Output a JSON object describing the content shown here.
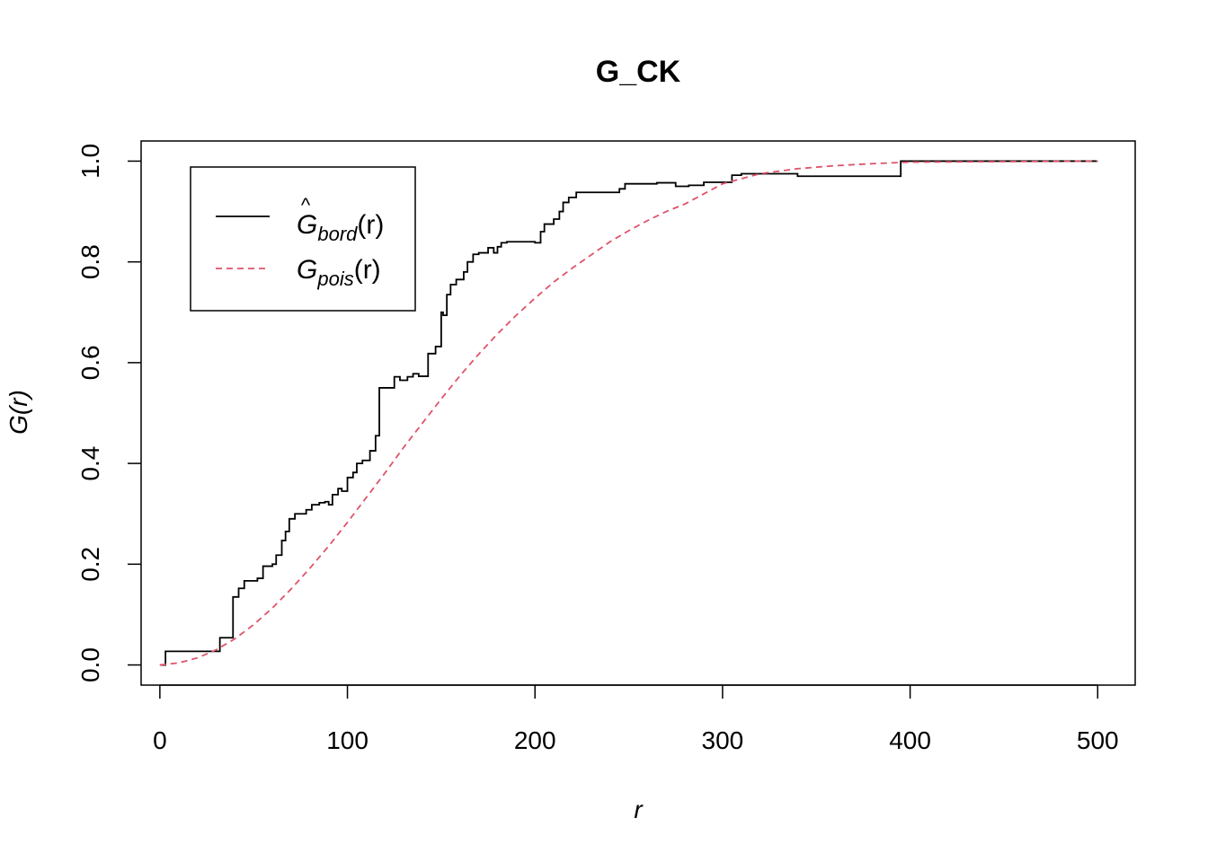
{
  "chart_data": {
    "type": "line",
    "title": "G_CK",
    "xlabel": "r",
    "ylabel": "G(r)",
    "xlim": [
      -10,
      520
    ],
    "ylim": [
      -0.04,
      1.04
    ],
    "x_ticks": [
      0,
      100,
      200,
      300,
      400,
      500
    ],
    "x_tick_labels": [
      "0",
      "100",
      "200",
      "300",
      "400",
      "500"
    ],
    "y_ticks": [
      0.0,
      0.2,
      0.4,
      0.6,
      0.8,
      1.0
    ],
    "y_tick_labels": [
      "0.0",
      "0.2",
      "0.4",
      "0.6",
      "0.8",
      "1.0"
    ],
    "grid": false,
    "legend_position": "top-left",
    "series": [
      {
        "name": "Ĝbord(r)",
        "legend_main": "G",
        "legend_sub": "bord",
        "legend_arg": "(r)",
        "color": "#000000",
        "style": "solid",
        "step": true,
        "x": [
          0,
          3,
          32,
          37,
          39,
          42,
          45,
          52,
          55,
          60,
          62,
          65,
          67,
          69,
          72,
          78,
          81,
          85,
          88,
          90,
          92,
          95,
          97,
          100,
          103,
          105,
          108,
          112,
          115,
          117,
          125,
          128,
          132,
          135,
          138,
          143,
          147,
          150,
          151,
          153,
          155,
          158,
          162,
          164,
          167,
          170,
          175,
          178,
          180,
          182,
          185,
          200,
          203,
          205,
          210,
          213,
          215,
          218,
          222,
          245,
          248,
          265,
          275,
          282,
          290,
          305,
          310,
          330,
          340,
          395,
          400,
          500
        ],
        "y": [
          0.0,
          0.027,
          0.054,
          0.054,
          0.135,
          0.152,
          0.167,
          0.172,
          0.196,
          0.2,
          0.218,
          0.247,
          0.265,
          0.29,
          0.3,
          0.308,
          0.318,
          0.322,
          0.324,
          0.318,
          0.338,
          0.35,
          0.345,
          0.372,
          0.382,
          0.4,
          0.406,
          0.425,
          0.455,
          0.55,
          0.572,
          0.565,
          0.572,
          0.578,
          0.573,
          0.618,
          0.632,
          0.7,
          0.694,
          0.735,
          0.755,
          0.765,
          0.78,
          0.8,
          0.815,
          0.818,
          0.828,
          0.818,
          0.83,
          0.838,
          0.84,
          0.838,
          0.86,
          0.875,
          0.885,
          0.9,
          0.918,
          0.928,
          0.938,
          0.945,
          0.955,
          0.957,
          0.95,
          0.952,
          0.958,
          0.972,
          0.975,
          0.975,
          0.97,
          1.0,
          1.0,
          1.0
        ]
      },
      {
        "name": "Gpois(r)",
        "legend_main": "G",
        "legend_sub": "pois",
        "legend_arg": "(r)",
        "color": "#df536b",
        "style": "dashed",
        "step": false,
        "x": [
          0,
          10,
          20,
          30,
          40,
          50,
          60,
          70,
          80,
          90,
          100,
          110,
          120,
          130,
          140,
          150,
          160,
          170,
          180,
          190,
          200,
          210,
          220,
          230,
          240,
          250,
          260,
          270,
          280,
          290,
          300,
          320,
          340,
          360,
          380,
          400,
          450,
          500
        ],
        "y": [
          0.0,
          0.004,
          0.014,
          0.03,
          0.052,
          0.08,
          0.113,
          0.151,
          0.192,
          0.236,
          0.283,
          0.332,
          0.381,
          0.432,
          0.48,
          0.528,
          0.574,
          0.617,
          0.657,
          0.694,
          0.728,
          0.76,
          0.788,
          0.814,
          0.84,
          0.862,
          0.882,
          0.9,
          0.915,
          0.935,
          0.955,
          0.975,
          0.985,
          0.991,
          0.995,
          0.998,
          0.999,
          1.0
        ]
      }
    ]
  }
}
